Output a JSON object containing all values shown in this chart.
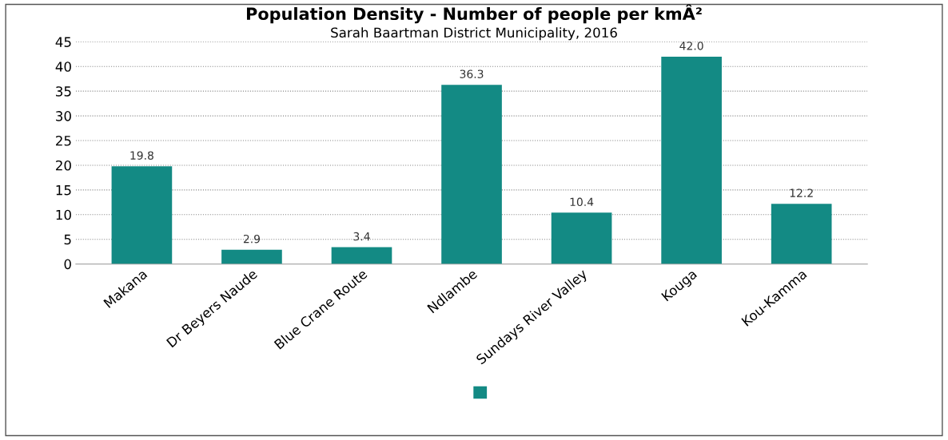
{
  "chart_data": {
    "type": "bar",
    "title": "Population Density - Number of people per kmÂ²",
    "subtitle": "Sarah Baartman District Municipality, 2016",
    "categories": [
      "Makana",
      "Dr Beyers Naude",
      "Blue Crane Route",
      "Ndlambe",
      "Sundays River Valley",
      "Kouga",
      "Kou-Kamma"
    ],
    "series": [
      {
        "color": "#138a84",
        "values": [
          19.8,
          2.9,
          3.4,
          36.3,
          10.4,
          42.0,
          12.2
        ],
        "value_labels": [
          "19.8",
          "2.9",
          "3.4",
          "36.3",
          "10.4",
          "42.0",
          "12.2"
        ]
      }
    ],
    "ylim": [
      0,
      45
    ],
    "yticks": [
      0,
      5,
      10,
      15,
      20,
      25,
      30,
      35,
      40,
      45
    ],
    "grid": "y"
  }
}
